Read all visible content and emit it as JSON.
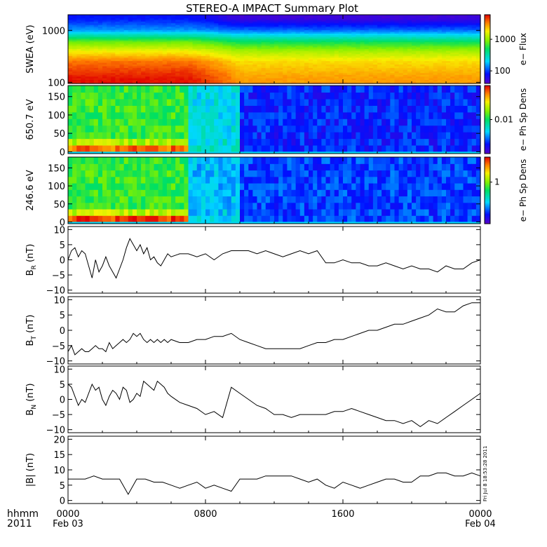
{
  "title": "STEREO-A IMPACT Summary Plot",
  "time_axis": {
    "row1_label": "hhmm",
    "row2_label": "2011",
    "ticks": [
      {
        "hour": 0,
        "time": "0000",
        "date": "Feb 03"
      },
      {
        "hour": 8,
        "time": "0800",
        "date": ""
      },
      {
        "hour": 16,
        "time": "1600",
        "date": ""
      },
      {
        "hour": 24,
        "time": "0000",
        "date": "Feb 04"
      }
    ],
    "range_hours": [
      0,
      24
    ]
  },
  "stamp": "Fri Jul  8 18:53:28 2011",
  "colors": {
    "frame": "#000000",
    "line": "#000000"
  },
  "chart_data": [
    {
      "type": "heatmap",
      "ylabel": "SWEA (eV)",
      "yscale": "log",
      "ylim": [
        95,
        2000
      ],
      "yticks": [
        {
          "v": 1000,
          "label": "1000"
        },
        {
          "v": 100,
          "label": "100"
        }
      ],
      "colorbar": {
        "label": "e− Flux",
        "scale": "log",
        "range": [
          40,
          6000
        ],
        "ticks": [
          {
            "v": 1000,
            "label": "1000"
          },
          {
            "v": 100,
            "label": "100"
          }
        ]
      },
      "bands": [
        {
          "energy": 1700,
          "value_early": 80,
          "value_late": 50
        },
        {
          "energy": 1000,
          "value_early": 150,
          "value_late": 120
        },
        {
          "energy": 600,
          "value_early": 800,
          "value_late": 500
        },
        {
          "energy": 400,
          "value_early": 1700,
          "value_late": 1100
        },
        {
          "energy": 250,
          "value_early": 3500,
          "value_late": 2000
        },
        {
          "energy": 120,
          "value_early": 5500,
          "value_late": 2800
        }
      ],
      "transition_hour": 7
    },
    {
      "type": "heatmap",
      "ylabel": "650.7 eV",
      "ylim": [
        -5,
        180
      ],
      "yticks": [
        {
          "v": 0,
          "label": "0"
        },
        {
          "v": 50,
          "label": "50"
        },
        {
          "v": 100,
          "label": "100"
        },
        {
          "v": 150,
          "label": "150"
        }
      ],
      "colorbar": {
        "label": "e− Ph Sp Dens",
        "scale": "log",
        "range": [
          0.001,
          0.1
        ],
        "ticks": [
          {
            "v": 0.01,
            "label": "0.01"
          }
        ]
      },
      "pitch_angle_bins": 10,
      "phases": [
        {
          "from": 0,
          "to": 7,
          "level": 0.55,
          "low_pa_boost": 0.35
        },
        {
          "from": 7,
          "to": 10,
          "level": 0.35,
          "low_pa_boost": 0.05
        },
        {
          "from": 10,
          "to": 24,
          "level": 0.15,
          "low_pa_boost": 0.0
        }
      ]
    },
    {
      "type": "heatmap",
      "ylabel": "246.6 eV",
      "ylim": [
        -5,
        180
      ],
      "yticks": [
        {
          "v": 0,
          "label": "0"
        },
        {
          "v": 50,
          "label": "50"
        },
        {
          "v": 100,
          "label": "100"
        },
        {
          "v": 150,
          "label": "150"
        }
      ],
      "colorbar": {
        "label": "e− Ph Sp Dens",
        "scale": "log",
        "range": [
          0.1,
          4
        ],
        "ticks": [
          {
            "v": 1,
            "label": "1"
          }
        ]
      },
      "pitch_angle_bins": 10,
      "phases": [
        {
          "from": 0,
          "to": 7,
          "level": 0.55,
          "low_pa_boost": 0.4
        },
        {
          "from": 7,
          "to": 10,
          "level": 0.3,
          "low_pa_boost": 0.05
        },
        {
          "from": 10,
          "to": 24,
          "level": 0.18,
          "low_pa_boost": 0.0
        }
      ]
    },
    {
      "type": "line",
      "ylabel": "B",
      "ylabel_sub": "R",
      "ylabel_unit": "(nT)",
      "ylim": [
        -11,
        11
      ],
      "yticks": [
        {
          "v": -10,
          "label": "−10"
        },
        {
          "v": -5,
          "label": "−5"
        },
        {
          "v": 0,
          "label": "0"
        },
        {
          "v": 5,
          "label": "5"
        },
        {
          "v": 10,
          "label": "10"
        }
      ],
      "x": [
        0,
        0.2,
        0.4,
        0.6,
        0.8,
        1.0,
        1.2,
        1.4,
        1.6,
        1.8,
        2.0,
        2.2,
        2.4,
        2.6,
        2.8,
        3.0,
        3.2,
        3.4,
        3.6,
        3.8,
        4.0,
        4.2,
        4.4,
        4.6,
        4.8,
        5.0,
        5.2,
        5.4,
        5.6,
        5.8,
        6.0,
        6.5,
        7.0,
        7.5,
        8.0,
        8.5,
        9.0,
        9.5,
        10.0,
        10.5,
        11.0,
        11.5,
        12.0,
        12.5,
        13.0,
        13.5,
        14.0,
        14.5,
        15.0,
        15.5,
        16.0,
        16.5,
        17.0,
        17.5,
        18.0,
        18.5,
        19.0,
        19.5,
        20.0,
        20.5,
        21.0,
        21.5,
        22.0,
        22.5,
        23.0,
        23.5,
        24.0
      ],
      "y": [
        0,
        3,
        4,
        1,
        3,
        2,
        -2,
        -6,
        0,
        -4,
        -2,
        1,
        -2,
        -4,
        -6,
        -3,
        0,
        4,
        7,
        5,
        3,
        5,
        2,
        4,
        0,
        1,
        -1,
        -2,
        0,
        2,
        1,
        2,
        2,
        1,
        2,
        0,
        2,
        3,
        3,
        3,
        2,
        3,
        2,
        1,
        2,
        3,
        2,
        3,
        -1,
        -1,
        0,
        -1,
        -1,
        -2,
        -2,
        -1,
        -2,
        -3,
        -2,
        -3,
        -3,
        -4,
        -2,
        -3,
        -3,
        -1,
        0
      ]
    },
    {
      "type": "line",
      "ylabel": "B",
      "ylabel_sub": "T",
      "ylabel_unit": "(nT)",
      "ylim": [
        -11,
        11
      ],
      "yticks": [
        {
          "v": -10,
          "label": "−10"
        },
        {
          "v": -5,
          "label": "−5"
        },
        {
          "v": 0,
          "label": "0"
        },
        {
          "v": 5,
          "label": "5"
        },
        {
          "v": 10,
          "label": "10"
        }
      ],
      "x": [
        0,
        0.2,
        0.4,
        0.6,
        0.8,
        1.0,
        1.2,
        1.4,
        1.6,
        1.8,
        2.0,
        2.2,
        2.4,
        2.6,
        2.8,
        3.0,
        3.2,
        3.4,
        3.6,
        3.8,
        4.0,
        4.2,
        4.4,
        4.6,
        4.8,
        5.0,
        5.2,
        5.4,
        5.6,
        5.8,
        6.0,
        6.5,
        7.0,
        7.5,
        8.0,
        8.5,
        9.0,
        9.5,
        10.0,
        10.5,
        11.0,
        11.5,
        12.0,
        12.5,
        13.0,
        13.5,
        14.0,
        14.5,
        15.0,
        15.5,
        16.0,
        16.5,
        17.0,
        17.5,
        18.0,
        18.5,
        19.0,
        19.5,
        20.0,
        20.5,
        21.0,
        21.5,
        22.0,
        22.5,
        23.0,
        23.5,
        24.0
      ],
      "y": [
        -7,
        -5,
        -8,
        -7,
        -6,
        -7,
        -7,
        -6,
        -5,
        -6,
        -6,
        -7,
        -4,
        -6,
        -5,
        -4,
        -3,
        -4,
        -3,
        -1,
        -2,
        -1,
        -3,
        -4,
        -3,
        -4,
        -3,
        -4,
        -3,
        -4,
        -3,
        -4,
        -4,
        -3,
        -3,
        -2,
        -2,
        -1,
        -3,
        -4,
        -5,
        -6,
        -6,
        -6,
        -6,
        -6,
        -5,
        -4,
        -4,
        -3,
        -3,
        -2,
        -1,
        0,
        0,
        1,
        2,
        2,
        3,
        4,
        5,
        7,
        6,
        6,
        8,
        9,
        9
      ]
    },
    {
      "type": "line",
      "ylabel": "B",
      "ylabel_sub": "N",
      "ylabel_unit": "(nT)",
      "ylim": [
        -11,
        11
      ],
      "yticks": [
        {
          "v": -10,
          "label": "−10"
        },
        {
          "v": -5,
          "label": "−5"
        },
        {
          "v": 0,
          "label": "0"
        },
        {
          "v": 5,
          "label": "5"
        },
        {
          "v": 10,
          "label": "10"
        }
      ],
      "x": [
        0,
        0.2,
        0.4,
        0.6,
        0.8,
        1.0,
        1.2,
        1.4,
        1.6,
        1.8,
        2.0,
        2.2,
        2.4,
        2.6,
        2.8,
        3.0,
        3.2,
        3.4,
        3.6,
        3.8,
        4.0,
        4.2,
        4.4,
        4.6,
        4.8,
        5.0,
        5.2,
        5.4,
        5.6,
        5.8,
        6.0,
        6.5,
        7.0,
        7.5,
        8.0,
        8.5,
        9.0,
        9.5,
        10.0,
        10.5,
        11.0,
        11.5,
        12.0,
        12.5,
        13.0,
        13.5,
        14.0,
        14.5,
        15.0,
        15.5,
        16.0,
        16.5,
        17.0,
        17.5,
        18.0,
        18.5,
        19.0,
        19.5,
        20.0,
        20.5,
        21.0,
        21.5,
        22.0,
        22.5,
        23.0,
        23.5,
        24.0
      ],
      "y": [
        5,
        4,
        1,
        -2,
        0,
        -1,
        2,
        5,
        3,
        4,
        0,
        -2,
        1,
        3,
        2,
        0,
        4,
        3,
        -1,
        0,
        2,
        1,
        6,
        5,
        4,
        3,
        6,
        5,
        4,
        2,
        1,
        -1,
        -2,
        -3,
        -5,
        -4,
        -6,
        4,
        2,
        0,
        -2,
        -3,
        -5,
        -5,
        -6,
        -5,
        -5,
        -5,
        -5,
        -4,
        -4,
        -3,
        -4,
        -5,
        -6,
        -7,
        -7,
        -8,
        -7,
        -9,
        -7,
        -8,
        -6,
        -4,
        -2,
        0,
        2
      ]
    },
    {
      "type": "line",
      "ylabel": "|B|",
      "ylabel_unit": "(nT)",
      "ylim": [
        -1,
        21
      ],
      "yticks": [
        {
          "v": 0,
          "label": "0"
        },
        {
          "v": 5,
          "label": "5"
        },
        {
          "v": 10,
          "label": "10"
        },
        {
          "v": 15,
          "label": "15"
        },
        {
          "v": 20,
          "label": "20"
        }
      ],
      "x": [
        0,
        0.5,
        1.0,
        1.5,
        2.0,
        2.5,
        3.0,
        3.5,
        4.0,
        4.5,
        5.0,
        5.5,
        6.0,
        6.5,
        7.0,
        7.5,
        8.0,
        8.5,
        9.0,
        9.5,
        10.0,
        10.5,
        11.0,
        11.5,
        12.0,
        12.5,
        13.0,
        13.5,
        14.0,
        14.5,
        15.0,
        15.5,
        16.0,
        16.5,
        17.0,
        17.5,
        18.0,
        18.5,
        19.0,
        19.5,
        20.0,
        20.5,
        21.0,
        21.5,
        22.0,
        22.5,
        23.0,
        23.5,
        24.0
      ],
      "y": [
        7,
        7,
        7,
        8,
        7,
        7,
        7,
        2,
        7,
        7,
        6,
        6,
        5,
        4,
        5,
        6,
        4,
        5,
        4,
        3,
        7,
        7,
        7,
        8,
        8,
        8,
        8,
        7,
        6,
        7,
        5,
        4,
        6,
        5,
        4,
        5,
        6,
        7,
        7,
        6,
        6,
        8,
        8,
        9,
        9,
        8,
        8,
        9,
        8
      ]
    }
  ]
}
